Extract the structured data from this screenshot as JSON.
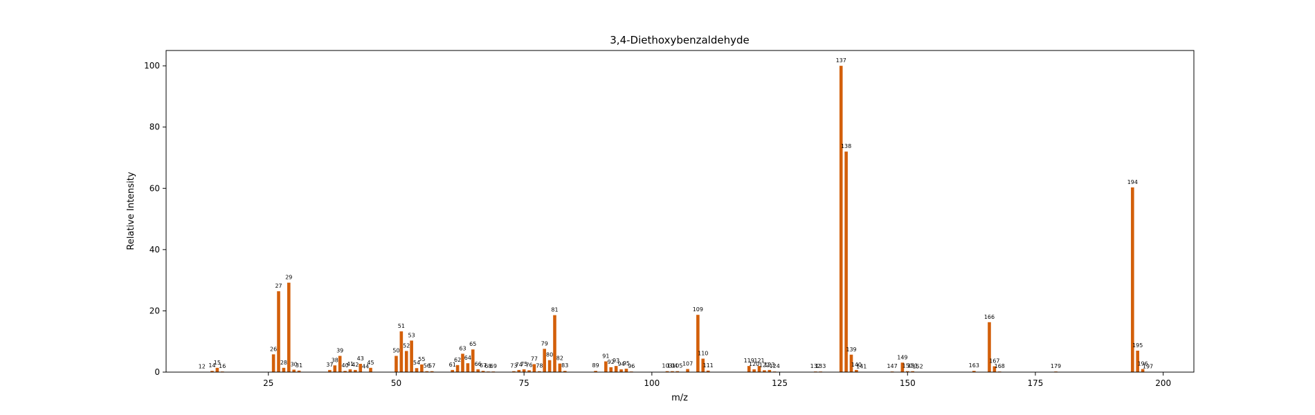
{
  "chart_data": {
    "type": "bar",
    "title": "3,4-Diethoxybenzaldehyde",
    "xlabel": "m/z",
    "ylabel": "Relative Intensity",
    "xlim": [
      5,
      206
    ],
    "ylim": [
      0,
      105
    ],
    "xticks": [
      25,
      50,
      75,
      100,
      125,
      150,
      175,
      200
    ],
    "yticks": [
      0,
      20,
      40,
      60,
      80,
      100
    ],
    "grid": false,
    "bar_color": "#d35f0a",
    "peaks": [
      {
        "x": 12,
        "y": 0.1,
        "label": "12"
      },
      {
        "x": 14,
        "y": 0.4,
        "label": "14"
      },
      {
        "x": 15,
        "y": 1.4,
        "label": "15"
      },
      {
        "x": 16,
        "y": 0.2,
        "label": "16"
      },
      {
        "x": 26,
        "y": 5.8,
        "label": "26"
      },
      {
        "x": 27,
        "y": 26.4,
        "label": "27"
      },
      {
        "x": 28,
        "y": 1.4,
        "label": "28"
      },
      {
        "x": 29,
        "y": 29.2,
        "label": "29"
      },
      {
        "x": 30,
        "y": 0.8,
        "label": "30"
      },
      {
        "x": 31,
        "y": 0.5,
        "label": "31"
      },
      {
        "x": 37,
        "y": 0.7,
        "label": "37"
      },
      {
        "x": 38,
        "y": 2.2,
        "label": "38"
      },
      {
        "x": 39,
        "y": 5.3,
        "label": "39"
      },
      {
        "x": 40,
        "y": 0.4,
        "label": "40"
      },
      {
        "x": 41,
        "y": 0.9,
        "label": "41"
      },
      {
        "x": 42,
        "y": 0.7,
        "label": "42"
      },
      {
        "x": 43,
        "y": 2.7,
        "label": "43"
      },
      {
        "x": 44,
        "y": 0.1,
        "label": "44"
      },
      {
        "x": 45,
        "y": 1.4,
        "label": "45"
      },
      {
        "x": 50,
        "y": 5.3,
        "label": "50"
      },
      {
        "x": 51,
        "y": 13.3,
        "label": "51"
      },
      {
        "x": 52,
        "y": 6.9,
        "label": "52"
      },
      {
        "x": 53,
        "y": 10.3,
        "label": "53"
      },
      {
        "x": 54,
        "y": 1.3,
        "label": "54"
      },
      {
        "x": 55,
        "y": 2.5,
        "label": "55"
      },
      {
        "x": 56,
        "y": 0.3,
        "label": "56"
      },
      {
        "x": 57,
        "y": 0.3,
        "label": "57"
      },
      {
        "x": 61,
        "y": 0.7,
        "label": "61"
      },
      {
        "x": 62,
        "y": 2.3,
        "label": "62"
      },
      {
        "x": 63,
        "y": 6.0,
        "label": "63"
      },
      {
        "x": 64,
        "y": 2.9,
        "label": "64"
      },
      {
        "x": 65,
        "y": 7.4,
        "label": "65"
      },
      {
        "x": 66,
        "y": 0.9,
        "label": "66"
      },
      {
        "x": 67,
        "y": 0.4,
        "label": "67"
      },
      {
        "x": 68,
        "y": 0.2,
        "label": "68"
      },
      {
        "x": 69,
        "y": 0.2,
        "label": "69"
      },
      {
        "x": 73,
        "y": 0.3,
        "label": "73"
      },
      {
        "x": 74,
        "y": 0.7,
        "label": "74"
      },
      {
        "x": 75,
        "y": 0.9,
        "label": "75"
      },
      {
        "x": 76,
        "y": 0.6,
        "label": "76"
      },
      {
        "x": 77,
        "y": 2.6,
        "label": "77"
      },
      {
        "x": 78,
        "y": 0.3,
        "label": "78"
      },
      {
        "x": 79,
        "y": 7.6,
        "label": "79"
      },
      {
        "x": 80,
        "y": 3.9,
        "label": "80"
      },
      {
        "x": 81,
        "y": 18.6,
        "label": "81"
      },
      {
        "x": 82,
        "y": 2.8,
        "label": "82"
      },
      {
        "x": 83,
        "y": 0.4,
        "label": "83"
      },
      {
        "x": 89,
        "y": 0.4,
        "label": "89"
      },
      {
        "x": 91,
        "y": 3.5,
        "label": "91"
      },
      {
        "x": 92,
        "y": 1.6,
        "label": "92"
      },
      {
        "x": 93,
        "y": 2.0,
        "label": "93"
      },
      {
        "x": 94,
        "y": 0.9,
        "label": "94"
      },
      {
        "x": 95,
        "y": 1.1,
        "label": "95"
      },
      {
        "x": 96,
        "y": 0.2,
        "label": "96"
      },
      {
        "x": 103,
        "y": 0.3,
        "label": "103"
      },
      {
        "x": 104,
        "y": 0.3,
        "label": "104"
      },
      {
        "x": 105,
        "y": 0.3,
        "label": "105"
      },
      {
        "x": 107,
        "y": 1.0,
        "label": "107"
      },
      {
        "x": 109,
        "y": 18.7,
        "label": "109"
      },
      {
        "x": 110,
        "y": 4.4,
        "label": "110"
      },
      {
        "x": 111,
        "y": 0.5,
        "label": "111"
      },
      {
        "x": 119,
        "y": 2.0,
        "label": "119"
      },
      {
        "x": 120,
        "y": 0.9,
        "label": "120"
      },
      {
        "x": 121,
        "y": 2.0,
        "label": "121"
      },
      {
        "x": 122,
        "y": 0.6,
        "label": "122"
      },
      {
        "x": 123,
        "y": 0.7,
        "label": "123"
      },
      {
        "x": 124,
        "y": 0.2,
        "label": "124"
      },
      {
        "x": 132,
        "y": 0.2,
        "label": "132"
      },
      {
        "x": 133,
        "y": 0.2,
        "label": "133"
      },
      {
        "x": 137,
        "y": 100.0,
        "label": "137"
      },
      {
        "x": 138,
        "y": 72.0,
        "label": "138"
      },
      {
        "x": 139,
        "y": 5.7,
        "label": "139"
      },
      {
        "x": 140,
        "y": 0.7,
        "label": "140"
      },
      {
        "x": 141,
        "y": 0.1,
        "label": "141"
      },
      {
        "x": 147,
        "y": 0.2,
        "label": "147"
      },
      {
        "x": 149,
        "y": 3.1,
        "label": "149"
      },
      {
        "x": 150,
        "y": 0.3,
        "label": "150"
      },
      {
        "x": 151,
        "y": 0.3,
        "label": "151"
      },
      {
        "x": 152,
        "y": 0.1,
        "label": "152"
      },
      {
        "x": 163,
        "y": 0.4,
        "label": "163"
      },
      {
        "x": 166,
        "y": 16.3,
        "label": "166"
      },
      {
        "x": 167,
        "y": 1.9,
        "label": "167"
      },
      {
        "x": 168,
        "y": 0.2,
        "label": "168"
      },
      {
        "x": 179,
        "y": 0.2,
        "label": "179"
      },
      {
        "x": 194,
        "y": 60.3,
        "label": "194"
      },
      {
        "x": 195,
        "y": 7.0,
        "label": "195"
      },
      {
        "x": 196,
        "y": 1.0,
        "label": "196"
      },
      {
        "x": 197,
        "y": 0.1,
        "label": "197"
      }
    ]
  }
}
